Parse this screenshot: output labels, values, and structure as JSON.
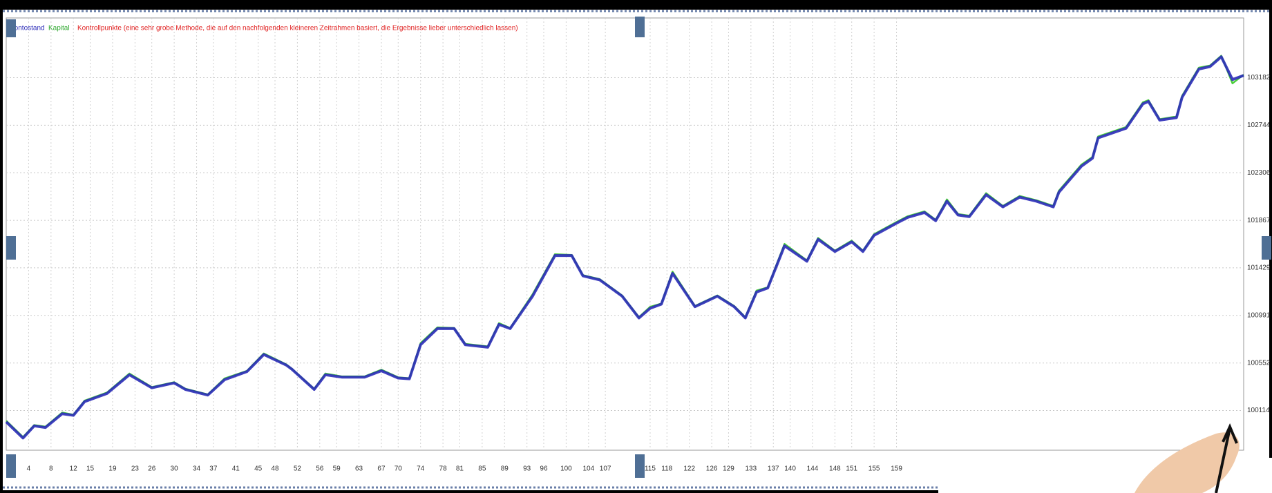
{
  "chart_data": {
    "type": "line",
    "legend": [
      "Kontostand",
      "Kapital"
    ],
    "legend_note": "Kontrollpunkte (eine sehr grobe Methode, die auf den nachfolgenden kleineren Zeitrahmen basiert, die Ergebnisse lieber unterschiedlich lassen)",
    "x": [
      0,
      3,
      5,
      7,
      10,
      12,
      14,
      18,
      22,
      26,
      30,
      32,
      36,
      39,
      43,
      46,
      50,
      51,
      55,
      57,
      60,
      64,
      67,
      70,
      72,
      74,
      77,
      80,
      82,
      86,
      88,
      90,
      94,
      98,
      101,
      103,
      106,
      110,
      113,
      115,
      117,
      119,
      123,
      127,
      130,
      132,
      134,
      136,
      139,
      143,
      145,
      148,
      151,
      153,
      155,
      159,
      161,
      164,
      166,
      168,
      170,
      172,
      175,
      178,
      181,
      184,
      187,
      188,
      192,
      194,
      195,
      200,
      203,
      204,
      206,
      209,
      210,
      213,
      215,
      217,
      219,
      221
    ],
    "series": [
      {
        "name": "Kontostand",
        "color": "#2b2bb8",
        "values": [
          100009,
          99860,
          99972,
          99957,
          100084,
          100069,
          100196,
          100271,
          100443,
          100323,
          100368,
          100308,
          100256,
          100398,
          100473,
          100630,
          100533,
          100495,
          100308,
          100443,
          100421,
          100421,
          100480,
          100413,
          100406,
          100720,
          100869,
          100869,
          100720,
          100697,
          100907,
          100869,
          101168,
          101542,
          101542,
          101355,
          101318,
          101168,
          100967,
          101056,
          101094,
          101378,
          101071,
          101168,
          101071,
          100967,
          101206,
          101243,
          101632,
          101490,
          101692,
          101580,
          101669,
          101580,
          101729,
          101841,
          101894,
          101939,
          101864,
          102043,
          101916,
          101901,
          102103,
          101991,
          102081,
          102043,
          101991,
          102126,
          102365,
          102440,
          102627,
          102716,
          102941,
          102963,
          102791,
          102814,
          103001,
          103262,
          103285,
          103375,
          103165,
          103203
        ]
      },
      {
        "name": "Kapital",
        "color": "#4ccf3c",
        "values": [
          100020,
          99870,
          99980,
          99965,
          100095,
          100075,
          100205,
          100280,
          100455,
          100330,
          100375,
          100315,
          100262,
          100410,
          100480,
          100640,
          100540,
          100500,
          100315,
          100455,
          100428,
          100428,
          100490,
          100420,
          100412,
          100735,
          100880,
          100875,
          100728,
          100705,
          100920,
          100875,
          101185,
          101555,
          101548,
          101362,
          101325,
          101175,
          100975,
          101070,
          101100,
          101395,
          101078,
          101175,
          101078,
          100975,
          101220,
          101250,
          101650,
          101498,
          101705,
          101588,
          101680,
          101588,
          101740,
          101852,
          101905,
          101950,
          101872,
          102060,
          101925,
          101910,
          102118,
          102000,
          102092,
          102052,
          102000,
          102140,
          102380,
          102452,
          102640,
          102728,
          102955,
          102975,
          102800,
          102825,
          103015,
          103275,
          103295,
          103385,
          103130,
          103210
        ]
      }
    ],
    "xlim": [
      0,
      221
    ],
    "xticks": [
      4,
      8,
      12,
      15,
      19,
      23,
      26,
      30,
      34,
      37,
      41,
      45,
      48,
      52,
      56,
      59,
      63,
      67,
      70,
      74,
      78,
      81,
      85,
      89,
      93,
      96,
      100,
      104,
      107,
      115,
      118,
      122,
      126,
      129,
      133,
      137,
      140,
      144,
      148,
      151,
      155,
      159
    ],
    "ylim": [
      99748,
      103733
    ],
    "yticks": [
      100114,
      100552,
      100991,
      101429,
      101867,
      102306,
      102744,
      103182
    ],
    "grid": true
  }
}
